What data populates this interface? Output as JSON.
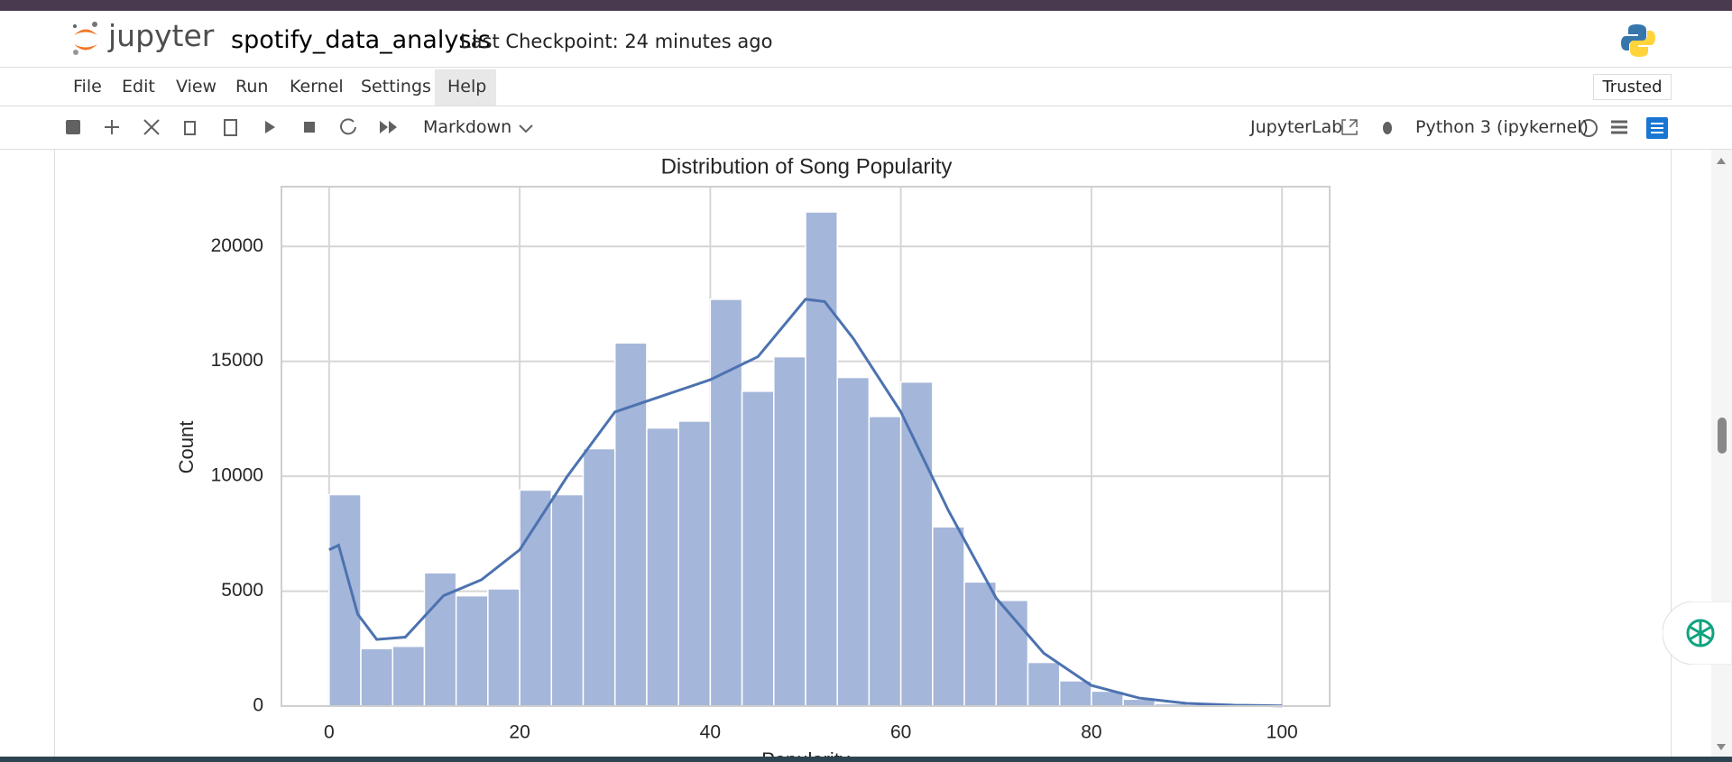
{
  "header": {
    "logo": "jupyter",
    "notebook_name": "spotify_data_analysis",
    "checkpoint": "Last Checkpoint: 24 minutes ago"
  },
  "menu": [
    "File",
    "Edit",
    "View",
    "Run",
    "Kernel",
    "Settings",
    "Help"
  ],
  "trusted": "Trusted",
  "toolbar": {
    "cell_type": "Markdown",
    "jupyterlab": "JupyterLab",
    "kernel": "Python 3 (ipykernel)"
  },
  "chart_data": {
    "type": "histogram",
    "title": "Distribution of Song Popularity",
    "x_label": "Popularity",
    "y_label": "Count",
    "bins": [
      0,
      3.333,
      6.667,
      10,
      13.333,
      16.667,
      20,
      23.333,
      26.667,
      30,
      33.333,
      36.667,
      40,
      43.333,
      46.667,
      50,
      53.333,
      56.667,
      60,
      63.333,
      66.667,
      70,
      73.333,
      76.667,
      80,
      83.333,
      86.667,
      90,
      93.333,
      96.667,
      100
    ],
    "values": [
      9200,
      2500,
      2600,
      5800,
      4800,
      5100,
      9400,
      9200,
      11200,
      15800,
      12100,
      12400,
      17700,
      13700,
      15200,
      21500,
      14300,
      12600,
      14100,
      7800,
      5400,
      4600,
      1900,
      1100,
      650,
      300,
      100,
      50,
      20,
      10
    ],
    "color": "#a4b6d9",
    "kde": {
      "color": "#4c72b0",
      "x": [
        0,
        1,
        3,
        5,
        8,
        12,
        16,
        20,
        25,
        30,
        35,
        40,
        45,
        50,
        52,
        55,
        60,
        65,
        70,
        75,
        80,
        85,
        90,
        95,
        100
      ],
      "values": [
        6800,
        7000,
        4000,
        2900,
        3000,
        4800,
        5500,
        6800,
        10000,
        12800,
        13500,
        14200,
        15200,
        17700,
        17600,
        16000,
        12800,
        8500,
        4700,
        2300,
        900,
        350,
        120,
        40,
        10
      ]
    },
    "xlim": [
      -5,
      105
    ],
    "ylim": [
      0,
      22600
    ],
    "xticks": [
      0,
      20,
      40,
      60,
      80,
      100
    ],
    "yticks": [
      0,
      5000,
      10000,
      15000,
      20000
    ],
    "grid": true
  }
}
